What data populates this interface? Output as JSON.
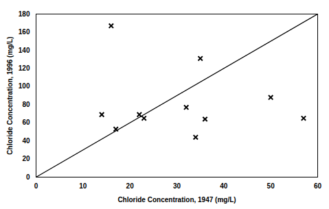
{
  "chart_data": {
    "type": "scatter",
    "x_label": "Chloride Concentration, 1947 (mg/L)",
    "y_label": "Chloride Concentration, 1996 (mg/L)",
    "x": [
      14,
      16,
      17,
      22,
      23,
      32,
      34,
      35,
      36,
      50,
      57
    ],
    "values": [
      69,
      167,
      53,
      69,
      65,
      77,
      44,
      131,
      64,
      88,
      65
    ],
    "color": "#000000",
    "marker": "x",
    "reference_line": {
      "x": [
        0,
        60
      ],
      "y": [
        0,
        180
      ]
    },
    "xlim": [
      0,
      60
    ],
    "xticks": [
      0,
      10,
      20,
      30,
      40,
      50,
      60
    ],
    "ylim": [
      0,
      180
    ],
    "yticks": [
      0,
      20,
      40,
      60,
      80,
      100,
      120,
      140,
      160,
      180
    ],
    "grid": false
  }
}
